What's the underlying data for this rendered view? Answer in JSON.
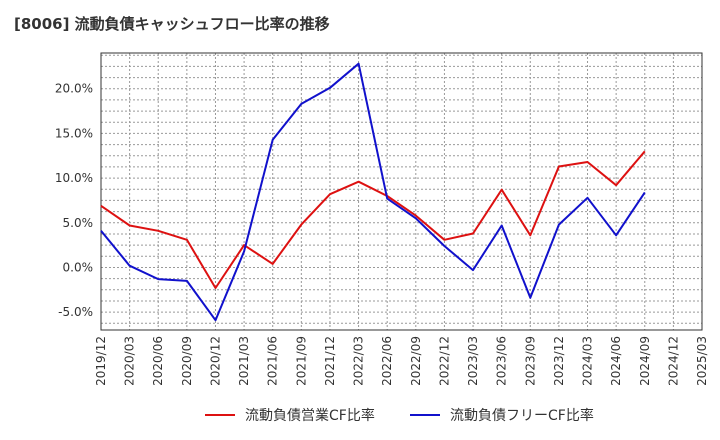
{
  "title": "[8006]  流動負債キャッシュフロー比率の推移",
  "chart_data": {
    "type": "line",
    "title": "[8006]  流動負債キャッシュフロー比率の推移",
    "xlabel": "",
    "ylabel": "",
    "x": [
      "2019/12",
      "2020/03",
      "2020/06",
      "2020/09",
      "2020/12",
      "2021/03",
      "2021/06",
      "2021/09",
      "2021/12",
      "2022/03",
      "2022/06",
      "2022/09",
      "2022/12",
      "2023/03",
      "2023/06",
      "2023/09",
      "2023/12",
      "2024/03",
      "2024/06",
      "2024/09",
      "2024/12",
      "2025/03"
    ],
    "yticks": [
      "20.0%",
      "15.0%",
      "10.0%",
      "5.0%",
      "0.0%",
      "-5.0%"
    ],
    "ylim": [
      -7.0,
      24.0
    ],
    "grid": true,
    "legend_position": "bottom",
    "series": [
      {
        "name": "流動負債営業CF比率",
        "color": "#dd1111",
        "values": [
          6.9,
          4.7,
          4.1,
          3.1,
          -2.3,
          2.5,
          0.4,
          4.8,
          8.2,
          9.6,
          8.0,
          5.8,
          3.1,
          3.8,
          8.7,
          3.6,
          11.3,
          11.8,
          9.2,
          13.0,
          null,
          null
        ]
      },
      {
        "name": "流動負債フリーCF比率",
        "color": "#1111cc",
        "values": [
          4.1,
          0.2,
          -1.3,
          -1.5,
          -5.9,
          1.8,
          14.3,
          18.3,
          20.1,
          22.8,
          7.7,
          5.5,
          2.4,
          -0.3,
          4.7,
          -3.4,
          4.8,
          7.8,
          3.6,
          8.4,
          null,
          null
        ]
      }
    ]
  }
}
